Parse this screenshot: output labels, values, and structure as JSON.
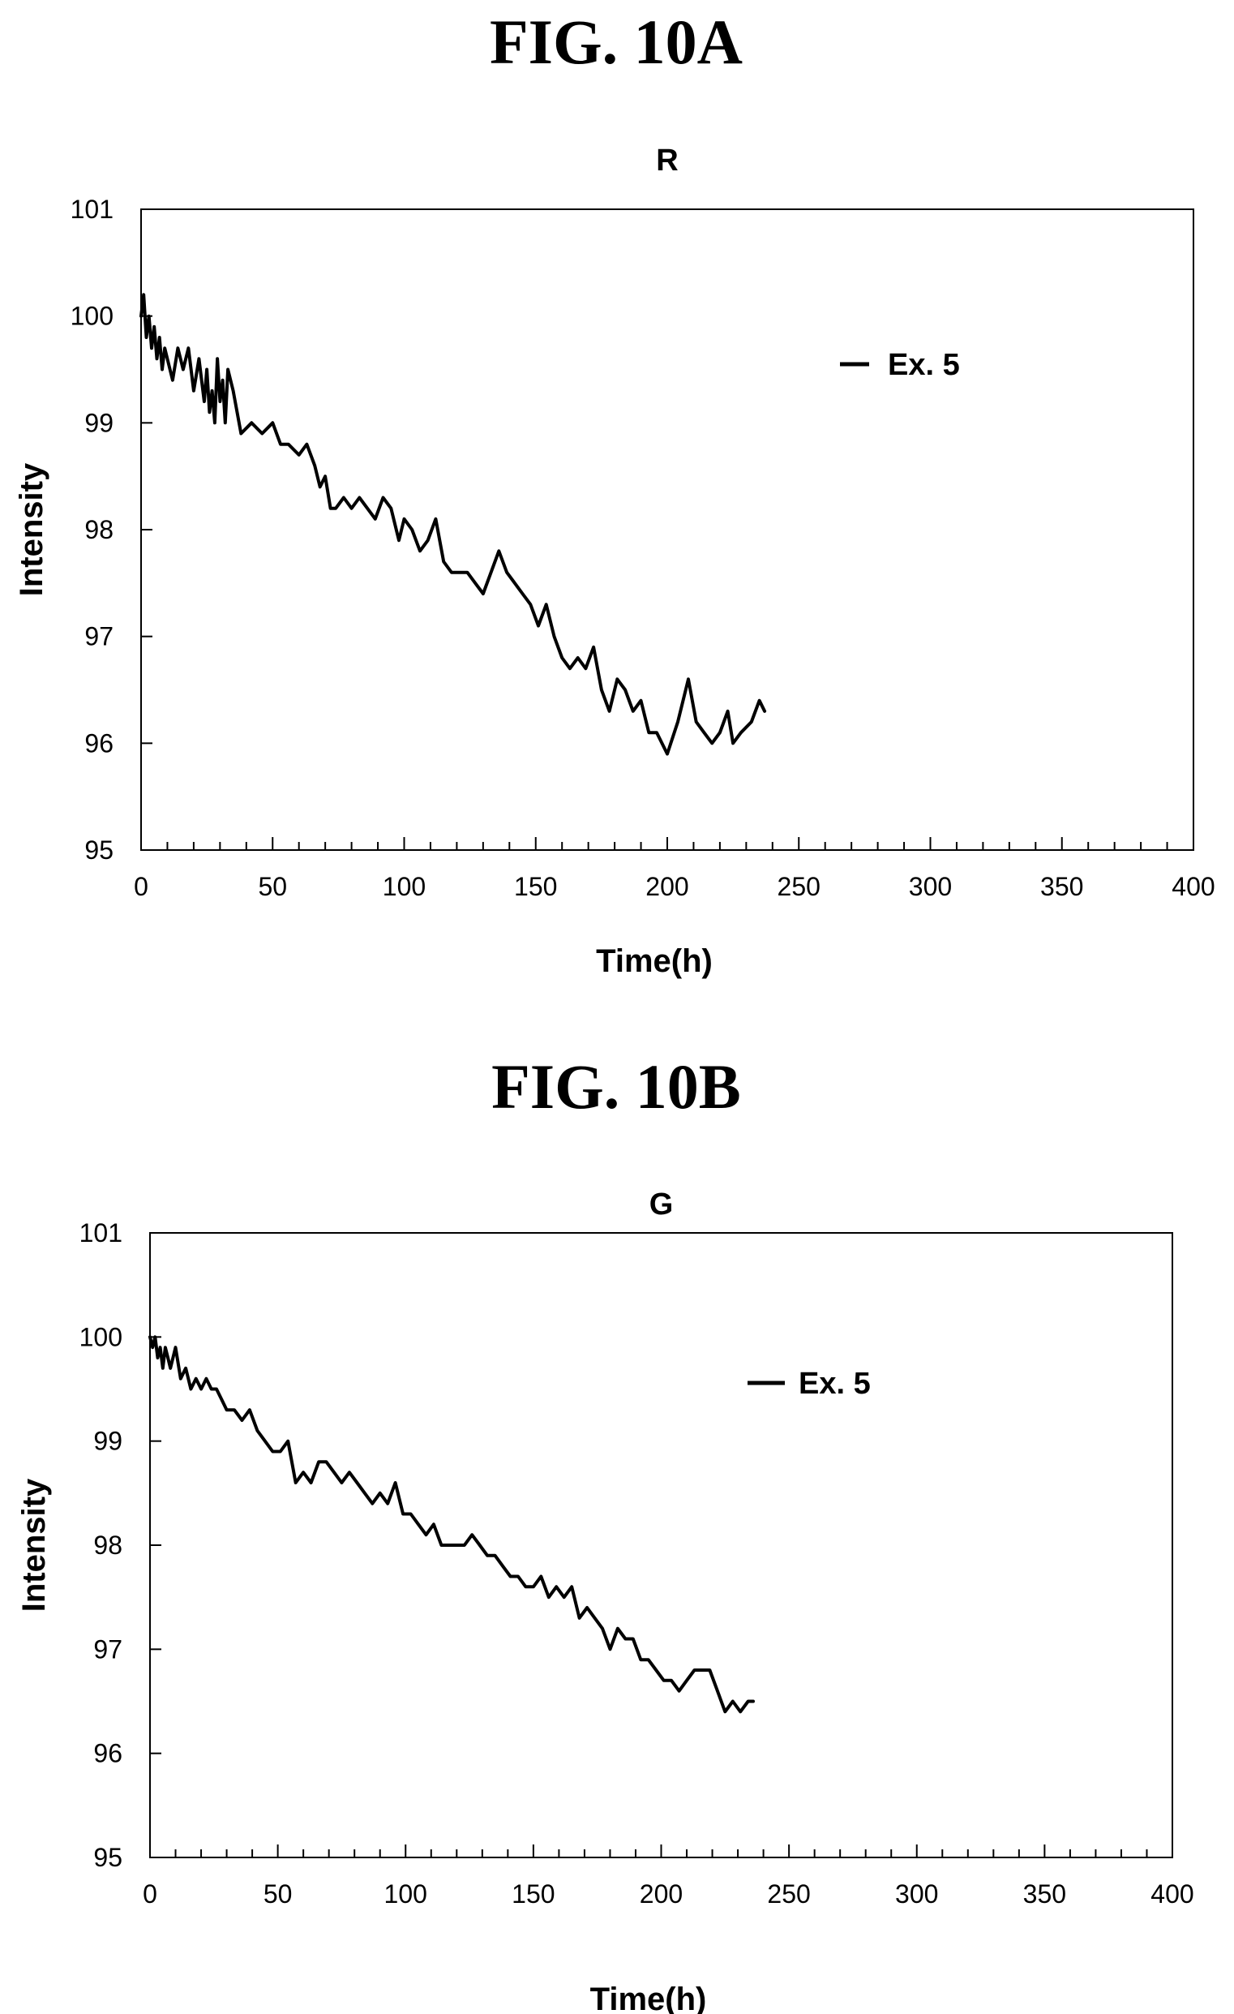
{
  "figures": [
    {
      "label": "FIG. 10A"
    },
    {
      "label": "FIG. 10B"
    }
  ],
  "chart_data": [
    {
      "type": "line",
      "title": "R",
      "xlabel": "Time(h)",
      "ylabel": "Intensity",
      "xlim": [
        0,
        400
      ],
      "ylim": [
        95,
        101
      ],
      "xticks": [
        0,
        50,
        100,
        150,
        200,
        250,
        300,
        350,
        400
      ],
      "yticks": [
        95,
        96,
        97,
        98,
        99,
        100,
        101
      ],
      "grid": false,
      "legend": {
        "position": "top-right",
        "entries": [
          "Ex. 5"
        ]
      },
      "series": [
        {
          "name": "Ex. 5",
          "x": [
            0,
            1,
            2,
            3,
            4,
            5,
            6,
            7,
            8,
            9,
            10,
            12,
            14,
            16,
            18,
            20,
            22,
            24,
            25,
            26,
            27,
            28,
            29,
            30,
            31,
            32,
            33,
            35,
            38,
            42,
            46,
            50,
            53,
            56,
            60,
            63,
            66,
            68,
            70,
            72,
            74,
            77,
            80,
            83,
            86,
            89,
            92,
            95,
            98,
            100,
            103,
            106,
            109,
            112,
            115,
            118,
            121,
            124,
            127,
            130,
            133,
            136,
            139,
            142,
            145,
            148,
            151,
            154,
            157,
            160,
            163,
            166,
            169,
            172,
            175,
            178,
            181,
            184,
            187,
            190,
            193,
            196,
            200,
            204,
            208,
            211,
            214,
            217,
            220,
            223,
            225,
            228,
            232,
            235,
            237
          ],
          "y": [
            100.0,
            100.2,
            99.8,
            100.0,
            99.7,
            99.9,
            99.6,
            99.8,
            99.5,
            99.7,
            99.6,
            99.4,
            99.7,
            99.5,
            99.7,
            99.3,
            99.6,
            99.2,
            99.5,
            99.1,
            99.3,
            99.0,
            99.6,
            99.2,
            99.4,
            99.0,
            99.5,
            99.3,
            98.9,
            99.0,
            98.9,
            99.0,
            98.8,
            98.8,
            98.7,
            98.8,
            98.6,
            98.4,
            98.5,
            98.2,
            98.2,
            98.3,
            98.2,
            98.3,
            98.2,
            98.1,
            98.3,
            98.2,
            97.9,
            98.1,
            98.0,
            97.8,
            97.9,
            98.1,
            97.7,
            97.6,
            97.6,
            97.6,
            97.5,
            97.4,
            97.6,
            97.8,
            97.6,
            97.5,
            97.4,
            97.3,
            97.1,
            97.3,
            97.0,
            96.8,
            96.7,
            96.8,
            96.7,
            96.9,
            96.5,
            96.3,
            96.6,
            96.5,
            96.3,
            96.4,
            96.1,
            96.1,
            95.9,
            96.2,
            96.6,
            96.2,
            96.1,
            96.0,
            96.1,
            96.3,
            96.0,
            96.1,
            96.2,
            96.4,
            96.3
          ]
        }
      ]
    },
    {
      "type": "line",
      "title": "G",
      "xlabel": "Time(h)",
      "ylabel": "Intensity",
      "xlim": [
        0,
        400
      ],
      "ylim": [
        95,
        101
      ],
      "xticks": [
        0,
        50,
        100,
        150,
        200,
        250,
        300,
        350,
        400
      ],
      "yticks": [
        95,
        96,
        97,
        98,
        99,
        100,
        101
      ],
      "grid": false,
      "legend": {
        "position": "top-right",
        "entries": [
          "Ex. 5"
        ]
      },
      "series": [
        {
          "name": "Ex. 5",
          "x": [
            0,
            1,
            2,
            3,
            4,
            5,
            6,
            7,
            8,
            10,
            12,
            14,
            16,
            18,
            20,
            22,
            24,
            26,
            28,
            30,
            33,
            36,
            39,
            42,
            45,
            48,
            51,
            54,
            57,
            60,
            63,
            66,
            69,
            72,
            75,
            78,
            81,
            84,
            87,
            90,
            93,
            96,
            99,
            102,
            105,
            108,
            111,
            114,
            117,
            120,
            123,
            126,
            129,
            132,
            135,
            138,
            141,
            144,
            147,
            150,
            153,
            156,
            159,
            162,
            165,
            168,
            171,
            174,
            177,
            180,
            183,
            186,
            189,
            192,
            195,
            198,
            201,
            204,
            207,
            210,
            213,
            216,
            219,
            222,
            225,
            228,
            231,
            234,
            236
          ],
          "y": [
            100.0,
            99.9,
            100.0,
            99.8,
            99.9,
            99.7,
            99.9,
            99.8,
            99.7,
            99.9,
            99.6,
            99.7,
            99.5,
            99.6,
            99.5,
            99.6,
            99.5,
            99.5,
            99.4,
            99.3,
            99.3,
            99.2,
            99.3,
            99.1,
            99.0,
            98.9,
            98.9,
            99.0,
            98.6,
            98.7,
            98.6,
            98.8,
            98.8,
            98.7,
            98.6,
            98.7,
            98.6,
            98.5,
            98.4,
            98.5,
            98.4,
            98.6,
            98.3,
            98.3,
            98.2,
            98.1,
            98.2,
            98.0,
            98.0,
            98.0,
            98.0,
            98.1,
            98.0,
            97.9,
            97.9,
            97.8,
            97.7,
            97.7,
            97.6,
            97.6,
            97.7,
            97.5,
            97.6,
            97.5,
            97.6,
            97.3,
            97.4,
            97.3,
            97.2,
            97.0,
            97.2,
            97.1,
            97.1,
            96.9,
            96.9,
            96.8,
            96.7,
            96.7,
            96.6,
            96.7,
            96.8,
            96.8,
            96.8,
            96.6,
            96.4,
            96.5,
            96.4,
            96.5,
            96.5
          ]
        }
      ]
    }
  ]
}
